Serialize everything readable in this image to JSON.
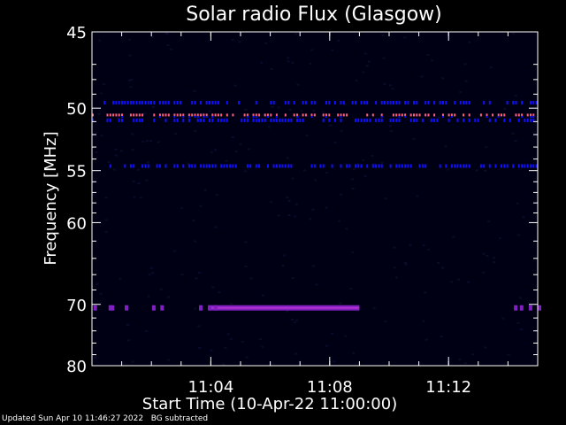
{
  "chart_data": {
    "type": "heatmap",
    "title": "Solar radio Flux (Glasgow)",
    "ylabel": "Frequency [MHz]",
    "xlabel": "Start Time (10-Apr-22 11:00:00)",
    "y_scale": "reciprocal",
    "ylim": [
      45,
      80
    ],
    "y_ticks_major": [
      45,
      50,
      55,
      60,
      70,
      80
    ],
    "y_ticks_minor": [
      47,
      48,
      49,
      51,
      52,
      53,
      54,
      56,
      57,
      58,
      59,
      62,
      64,
      66,
      68,
      72,
      74,
      76,
      78
    ],
    "xlim": [
      "11:00",
      "11:15"
    ],
    "x_ticks": [
      "11:04",
      "11:08",
      "11:12"
    ],
    "x_minor_interval_min": 1,
    "colors": {
      "background": "#000000",
      "faint": "#0a0a2a",
      "band_blue": "#1010ff",
      "band_hot": "#ff6080",
      "band_purple": "#8020c0"
    },
    "bands": [
      {
        "freq_mhz": 49.6,
        "start": "11:00",
        "end": "11:15",
        "intensity": "blue",
        "pattern": "intermittent"
      },
      {
        "freq_mhz": 50.5,
        "start": "11:00",
        "end": "11:15",
        "intensity": "hot",
        "pattern": "intermittent"
      },
      {
        "freq_mhz": 50.9,
        "start": "11:00",
        "end": "11:15",
        "intensity": "blue",
        "pattern": "intermittent"
      },
      {
        "freq_mhz": 54.6,
        "start": "11:00",
        "end": "11:15",
        "intensity": "blue",
        "pattern": "intermittent"
      },
      {
        "freq_mhz": 70.5,
        "start": "11:04",
        "end": "11:09",
        "intensity": "purple",
        "pattern": "solid"
      },
      {
        "freq_mhz": 70.5,
        "start": "11:00",
        "end": "11:15",
        "intensity": "purple",
        "pattern": "sparse"
      }
    ]
  },
  "footer": {
    "updated": "Updated Sun Apr 10 11:46:27 2022",
    "note": "BG subtracted"
  }
}
